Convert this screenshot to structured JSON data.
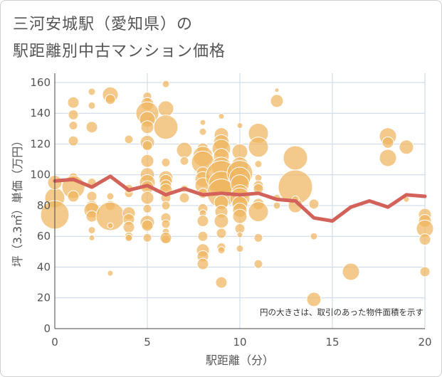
{
  "title_line1": "三河安城駅（愛知県）の",
  "title_line2": "駅距離別中古マンション価格",
  "chart_data": {
    "type": "scatter",
    "xlabel": "駅距離（分）",
    "ylabel": "坪（3.3㎡）単価（万円）",
    "xlim": [
      0,
      20
    ],
    "ylim": [
      0,
      166
    ],
    "xticks": [
      0,
      5,
      10,
      15,
      20
    ],
    "yticks": [
      0,
      20,
      40,
      60,
      80,
      100,
      120,
      140,
      160
    ],
    "grid": true,
    "annotation": "円の大きさは、取引のあった物件面積を示す",
    "colors": {
      "bubble": "#f0b660",
      "line": "#d2625a",
      "grid": "#c9d6e6",
      "plot_bg": "#ffffff"
    },
    "bubbles": [
      {
        "x": 0,
        "y": 85,
        "s": 14
      },
      {
        "x": 0,
        "y": 74,
        "s": 20
      },
      {
        "x": 0,
        "y": 95,
        "s": 10
      },
      {
        "x": 1,
        "y": 147,
        "s": 8
      },
      {
        "x": 1,
        "y": 139,
        "s": 7
      },
      {
        "x": 1,
        "y": 132,
        "s": 6
      },
      {
        "x": 1,
        "y": 122,
        "s": 7
      },
      {
        "x": 1,
        "y": 98,
        "s": 7
      },
      {
        "x": 1,
        "y": 92,
        "s": 16
      },
      {
        "x": 1,
        "y": 86,
        "s": 8
      },
      {
        "x": 2,
        "y": 154,
        "s": 5
      },
      {
        "x": 2,
        "y": 145,
        "s": 5
      },
      {
        "x": 2,
        "y": 131,
        "s": 8
      },
      {
        "x": 2,
        "y": 95,
        "s": 6
      },
      {
        "x": 2,
        "y": 86,
        "s": 7
      },
      {
        "x": 2,
        "y": 79,
        "s": 9
      },
      {
        "x": 2,
        "y": 77,
        "s": 11
      },
      {
        "x": 2,
        "y": 73,
        "s": 8
      },
      {
        "x": 2,
        "y": 64,
        "s": 5
      },
      {
        "x": 2,
        "y": 59,
        "s": 4
      },
      {
        "x": 3,
        "y": 152,
        "s": 11
      },
      {
        "x": 3,
        "y": 149,
        "s": 7
      },
      {
        "x": 3,
        "y": 86,
        "s": 5
      },
      {
        "x": 3,
        "y": 80,
        "s": 7
      },
      {
        "x": 3,
        "y": 73,
        "s": 20
      },
      {
        "x": 3,
        "y": 67,
        "s": 4
      },
      {
        "x": 3,
        "y": 36,
        "s": 4
      },
      {
        "x": 4,
        "y": 123,
        "s": 6
      },
      {
        "x": 4,
        "y": 88,
        "s": 6
      },
      {
        "x": 4,
        "y": 75,
        "s": 9
      },
      {
        "x": 4,
        "y": 71,
        "s": 8
      },
      {
        "x": 4,
        "y": 66,
        "s": 8
      },
      {
        "x": 4,
        "y": 60,
        "s": 6
      },
      {
        "x": 4,
        "y": 59,
        "s": 5
      },
      {
        "x": 4,
        "y": 91,
        "s": 6
      },
      {
        "x": 5,
        "y": 151,
        "s": 6
      },
      {
        "x": 5,
        "y": 148,
        "s": 5
      },
      {
        "x": 5,
        "y": 146,
        "s": 9
      },
      {
        "x": 5,
        "y": 140,
        "s": 16
      },
      {
        "x": 5,
        "y": 136,
        "s": 11
      },
      {
        "x": 5,
        "y": 131,
        "s": 9
      },
      {
        "x": 5,
        "y": 121,
        "s": 10
      },
      {
        "x": 5,
        "y": 119,
        "s": 7
      },
      {
        "x": 5,
        "y": 109,
        "s": 9
      },
      {
        "x": 5,
        "y": 100,
        "s": 10
      },
      {
        "x": 5,
        "y": 95,
        "s": 11
      },
      {
        "x": 5,
        "y": 92,
        "s": 9
      },
      {
        "x": 5,
        "y": 85,
        "s": 9
      },
      {
        "x": 5,
        "y": 78,
        "s": 6
      },
      {
        "x": 5,
        "y": 69,
        "s": 10
      },
      {
        "x": 5,
        "y": 67,
        "s": 8
      },
      {
        "x": 5,
        "y": 59,
        "s": 6
      },
      {
        "x": 6,
        "y": 159,
        "s": 5
      },
      {
        "x": 6,
        "y": 143,
        "s": 11
      },
      {
        "x": 6,
        "y": 131,
        "s": 17
      },
      {
        "x": 6,
        "y": 108,
        "s": 6
      },
      {
        "x": 6,
        "y": 98,
        "s": 10
      },
      {
        "x": 6,
        "y": 96,
        "s": 9
      },
      {
        "x": 6,
        "y": 93,
        "s": 8
      },
      {
        "x": 6,
        "y": 90,
        "s": 9
      },
      {
        "x": 6,
        "y": 85,
        "s": 7
      },
      {
        "x": 6,
        "y": 80,
        "s": 6
      },
      {
        "x": 6,
        "y": 72,
        "s": 7
      },
      {
        "x": 6,
        "y": 68,
        "s": 6
      },
      {
        "x": 6,
        "y": 63,
        "s": 5
      },
      {
        "x": 6,
        "y": 58,
        "s": 6
      },
      {
        "x": 6,
        "y": 59,
        "s": 8
      },
      {
        "x": 7,
        "y": 116,
        "s": 11
      },
      {
        "x": 7,
        "y": 109,
        "s": 6
      },
      {
        "x": 7,
        "y": 85,
        "s": 7
      },
      {
        "x": 7,
        "y": 91,
        "s": 5
      },
      {
        "x": 8,
        "y": 134,
        "s": 4
      },
      {
        "x": 8,
        "y": 128,
        "s": 5
      },
      {
        "x": 8,
        "y": 117,
        "s": 8
      },
      {
        "x": 8,
        "y": 112,
        "s": 14
      },
      {
        "x": 8,
        "y": 108,
        "s": 16
      },
      {
        "x": 8,
        "y": 101,
        "s": 9
      },
      {
        "x": 8,
        "y": 97,
        "s": 11
      },
      {
        "x": 8,
        "y": 93,
        "s": 11
      },
      {
        "x": 8,
        "y": 88,
        "s": 7
      },
      {
        "x": 8,
        "y": 78,
        "s": 7
      },
      {
        "x": 8,
        "y": 75,
        "s": 5
      },
      {
        "x": 8,
        "y": 70,
        "s": 8
      },
      {
        "x": 8,
        "y": 60,
        "s": 7
      },
      {
        "x": 8,
        "y": 51,
        "s": 9
      },
      {
        "x": 8,
        "y": 47,
        "s": 8
      },
      {
        "x": 8,
        "y": 42,
        "s": 8
      },
      {
        "x": 9,
        "y": 138,
        "s": 4
      },
      {
        "x": 9,
        "y": 126,
        "s": 10
      },
      {
        "x": 9,
        "y": 121,
        "s": 11
      },
      {
        "x": 9,
        "y": 117,
        "s": 13
      },
      {
        "x": 9,
        "y": 112,
        "s": 11
      },
      {
        "x": 9,
        "y": 105,
        "s": 14
      },
      {
        "x": 9,
        "y": 99,
        "s": 22
      },
      {
        "x": 9,
        "y": 94,
        "s": 18
      },
      {
        "x": 9,
        "y": 88,
        "s": 20
      },
      {
        "x": 9,
        "y": 82,
        "s": 10
      },
      {
        "x": 9,
        "y": 76,
        "s": 9
      },
      {
        "x": 9,
        "y": 70,
        "s": 10
      },
      {
        "x": 9,
        "y": 62,
        "s": 7
      },
      {
        "x": 9,
        "y": 53,
        "s": 6
      },
      {
        "x": 9,
        "y": 51,
        "s": 5
      },
      {
        "x": 9,
        "y": 30,
        "s": 8
      },
      {
        "x": 10,
        "y": 132,
        "s": 4
      },
      {
        "x": 10,
        "y": 115,
        "s": 11
      },
      {
        "x": 10,
        "y": 106,
        "s": 12
      },
      {
        "x": 10,
        "y": 101,
        "s": 18
      },
      {
        "x": 10,
        "y": 98,
        "s": 15
      },
      {
        "x": 10,
        "y": 94,
        "s": 13
      },
      {
        "x": 10,
        "y": 88,
        "s": 12
      },
      {
        "x": 10,
        "y": 85,
        "s": 14
      },
      {
        "x": 10,
        "y": 81,
        "s": 11
      },
      {
        "x": 10,
        "y": 77,
        "s": 10
      },
      {
        "x": 10,
        "y": 73,
        "s": 10
      },
      {
        "x": 10,
        "y": 65,
        "s": 7
      },
      {
        "x": 10,
        "y": 61,
        "s": 4
      },
      {
        "x": 10,
        "y": 52,
        "s": 5
      },
      {
        "x": 11,
        "y": 127,
        "s": 14
      },
      {
        "x": 11,
        "y": 118,
        "s": 14
      },
      {
        "x": 11,
        "y": 107,
        "s": 5
      },
      {
        "x": 11,
        "y": 98,
        "s": 5
      },
      {
        "x": 11,
        "y": 93,
        "s": 7
      },
      {
        "x": 11,
        "y": 91,
        "s": 7
      },
      {
        "x": 11,
        "y": 81,
        "s": 8
      },
      {
        "x": 11,
        "y": 76,
        "s": 14
      },
      {
        "x": 11,
        "y": 59,
        "s": 6
      },
      {
        "x": 11,
        "y": 42,
        "s": 6
      },
      {
        "x": 12,
        "y": 155,
        "s": 3
      },
      {
        "x": 12,
        "y": 148,
        "s": 9
      },
      {
        "x": 12,
        "y": 85,
        "s": 5
      },
      {
        "x": 12,
        "y": 80,
        "s": 5
      },
      {
        "x": 13,
        "y": 111,
        "s": 17
      },
      {
        "x": 13,
        "y": 92,
        "s": 24
      },
      {
        "x": 13,
        "y": 80,
        "s": 10
      },
      {
        "x": 13,
        "y": 84,
        "s": 5
      },
      {
        "x": 14,
        "y": 81,
        "s": 7
      },
      {
        "x": 14,
        "y": 60,
        "s": 5
      },
      {
        "x": 14,
        "y": 19,
        "s": 10
      },
      {
        "x": 16,
        "y": 37,
        "s": 12
      },
      {
        "x": 18,
        "y": 125,
        "s": 12
      },
      {
        "x": 18,
        "y": 121,
        "s": 8
      },
      {
        "x": 18,
        "y": 111,
        "s": 12
      },
      {
        "x": 19,
        "y": 118,
        "s": 10
      },
      {
        "x": 19,
        "y": 84,
        "s": 4
      },
      {
        "x": 20,
        "y": 74,
        "s": 9
      },
      {
        "x": 20,
        "y": 70,
        "s": 9
      },
      {
        "x": 20,
        "y": 65,
        "s": 12
      },
      {
        "x": 20,
        "y": 58,
        "s": 8
      },
      {
        "x": 20,
        "y": 37,
        "s": 7
      }
    ],
    "trend": {
      "x": [
        0,
        1,
        2,
        3,
        4,
        5,
        6,
        7,
        8,
        9,
        10,
        11,
        12,
        13,
        14,
        15,
        16,
        17,
        18,
        19,
        20
      ],
      "y": [
        96,
        97,
        92,
        99,
        90,
        93,
        87,
        91,
        87,
        88,
        87,
        88,
        84,
        83,
        72,
        70,
        79,
        83,
        79,
        87,
        86
      ]
    }
  }
}
